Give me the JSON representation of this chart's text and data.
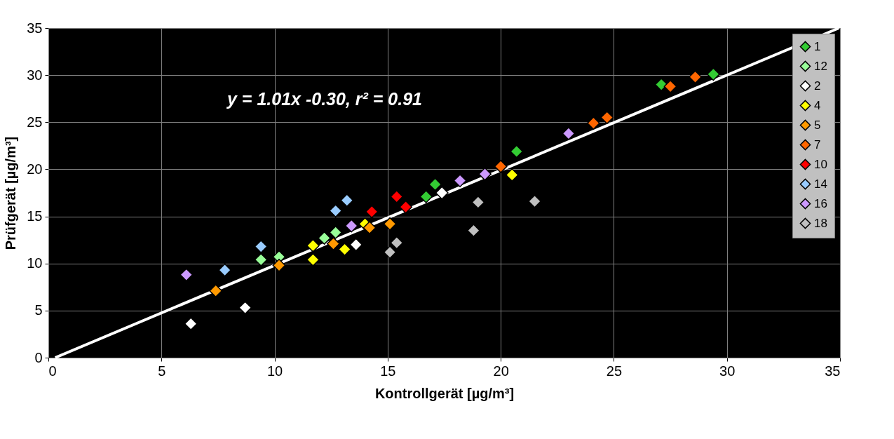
{
  "chart_data": {
    "type": "scatter",
    "xlabel": "Kontrollgerät    [µg/m³]",
    "ylabel": "Prüfgerät    [µg/m³]",
    "xlim": [
      0,
      35
    ],
    "ylim": [
      0,
      35
    ],
    "xticks": [
      0,
      5,
      10,
      15,
      20,
      25,
      30,
      35
    ],
    "yticks": [
      0,
      5,
      10,
      15,
      20,
      25,
      30,
      35
    ],
    "grid": true,
    "legend": "right",
    "marker": "diamond",
    "annotations": [
      "y = 1.01x -0.30, r² = 0.91"
    ],
    "series": [
      {
        "name": "1",
        "color": "#33cc33",
        "x": [
          27.1,
          29.4,
          20.7,
          17.1,
          16.7
        ],
        "values": [
          29.0,
          30.1,
          21.9,
          18.4,
          17.1
        ]
      },
      {
        "name": "12",
        "color": "#99ff99",
        "x": [
          9.4,
          10.2,
          12.2,
          12.7
        ],
        "values": [
          10.4,
          10.7,
          12.7,
          13.3
        ]
      },
      {
        "name": "2",
        "color": "#ffffff",
        "x": [
          6.3,
          8.7,
          13.6,
          17.4
        ],
        "values": [
          3.6,
          5.3,
          12.0,
          17.5
        ]
      },
      {
        "name": "4",
        "color": "#ffff00",
        "x": [
          11.7,
          11.7,
          13.1,
          14.0,
          20.5
        ],
        "values": [
          11.9,
          10.4,
          11.5,
          14.2,
          19.4
        ]
      },
      {
        "name": "5",
        "color": "#ff9900",
        "x": [
          7.4,
          10.2,
          12.6,
          14.2,
          15.1
        ],
        "values": [
          7.1,
          9.8,
          12.1,
          13.8,
          14.2
        ]
      },
      {
        "name": "7",
        "color": "#ff6600",
        "x": [
          20.0,
          24.1,
          24.7,
          27.5,
          28.6
        ],
        "values": [
          20.3,
          24.9,
          25.5,
          28.8,
          29.8
        ]
      },
      {
        "name": "10",
        "color": "#ff0000",
        "x": [
          14.3,
          15.4,
          15.8
        ],
        "values": [
          15.5,
          17.1,
          16.0
        ]
      },
      {
        "name": "14",
        "color": "#99ccff",
        "x": [
          7.8,
          9.4,
          12.7,
          13.2
        ],
        "values": [
          9.3,
          11.8,
          15.6,
          16.7
        ]
      },
      {
        "name": "16",
        "color": "#cc99ff",
        "x": [
          6.1,
          13.4,
          18.2,
          19.3,
          23.0
        ],
        "values": [
          8.8,
          14.0,
          18.8,
          19.5,
          23.8
        ]
      },
      {
        "name": "18",
        "color": "#c0c0c0",
        "x": [
          15.1,
          15.4,
          18.8,
          19.0,
          21.5
        ],
        "values": [
          11.2,
          12.2,
          13.5,
          16.5,
          16.6
        ]
      },
      {
        "type": "line",
        "color": "#ffffff",
        "line_style": "solid",
        "marker": "none",
        "x": [
          0.3,
          34.95
        ],
        "values": [
          0.0,
          35.0
        ]
      }
    ]
  }
}
